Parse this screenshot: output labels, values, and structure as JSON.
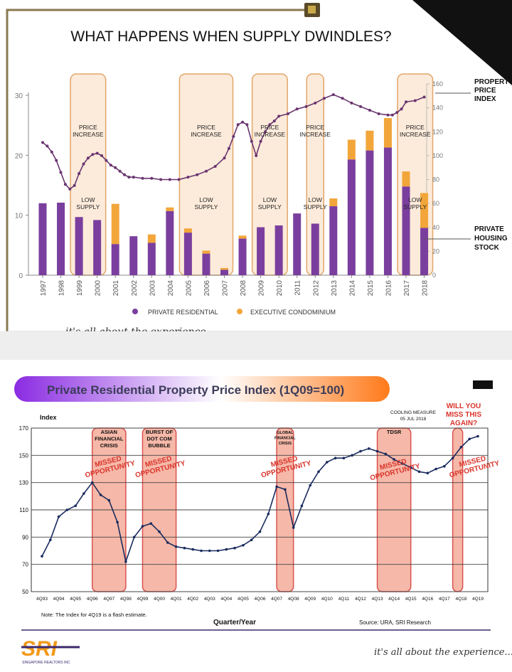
{
  "top": {
    "title": "WHAT HAPPENS WHEN SUPPLY DWINDLES?",
    "footer_tagline": "it's all about the experience...",
    "right_labels": {
      "price_index": [
        "PROPERTY",
        "PRICE",
        "INDEX"
      ],
      "housing_stock": [
        "PRIVATE",
        "HOUSING",
        "STOCK"
      ]
    },
    "colors": {
      "private": "#7a3f9e",
      "ec": "#f2a63a",
      "band_fill": "#fbe8d4",
      "band_stroke": "#e2a66a",
      "line": "#6a3570",
      "frame": "#8a7a52"
    }
  },
  "bottom": {
    "title": "Private Residential Property Price Index (1Q09=100)",
    "note": "Note: The Index for 4Q19 is a flash estimate.",
    "source": "Source: URA, SRI Research",
    "callout": [
      "WILL YOU",
      "MISS THIS",
      "AGAIN?"
    ],
    "cooling_measure": [
      "COOLING MEASURE",
      "05 JUL 2018"
    ],
    "missed_label": [
      "MISSED",
      "OPPORTUNITY"
    ],
    "logo_text": "SRI",
    "logo_subtext": "SINGAPORE REALTORS INC",
    "footer_tagline": "it's all about the experience...",
    "colors": {
      "band_fill": "#f6b8a8",
      "band_stroke": "#d9534f",
      "line": "#1a2b5e",
      "title_grad_start": "#8a2be2",
      "title_grad_end": "#ff7a1a",
      "missed": "#d9342b"
    }
  },
  "chart_data": [
    {
      "type": "bar",
      "title": "WHAT HAPPENS WHEN SUPPLY DWINDLES?",
      "categories": [
        "1997",
        "1998",
        "1999",
        "2000",
        "2001",
        "2002",
        "2003",
        "2004",
        "2005",
        "2006",
        "2007",
        "2008",
        "2009",
        "2010",
        "2011",
        "2012",
        "2013",
        "2014",
        "2015",
        "2016",
        "2017",
        "2018"
      ],
      "series": [
        {
          "name": "PRIVATE RESIDENTIAL",
          "axis": "left",
          "stacked": true,
          "values": [
            12.0,
            12.1,
            9.7,
            9.2,
            5.2,
            6.5,
            5.4,
            10.7,
            7.1,
            3.6,
            0.9,
            6.1,
            8.0,
            8.3,
            10.3,
            8.6,
            11.5,
            19.3,
            20.8,
            21.3,
            14.8,
            7.9
          ]
        },
        {
          "name": "EXECUTIVE CONDOMINIUM",
          "axis": "left",
          "stacked": true,
          "values": [
            0,
            0,
            0,
            0,
            6.7,
            0,
            1.4,
            0.6,
            0.7,
            0.5,
            0.3,
            0.5,
            0,
            0,
            0,
            0,
            1.3,
            3.3,
            3.3,
            4.9,
            2.5,
            5.8
          ]
        },
        {
          "name": "",
          "type": "line",
          "axis": "right",
          "x": [
            1997.0,
            1997.25,
            1997.5,
            1997.75,
            1998.0,
            1998.25,
            1998.5,
            1998.75,
            1999.0,
            1999.25,
            1999.5,
            1999.75,
            2000.0,
            2000.25,
            2000.5,
            2000.75,
            2001.0,
            2001.25,
            2001.5,
            2001.75,
            2002.0,
            2002.5,
            2003.0,
            2003.5,
            2004.0,
            2004.5,
            2005.0,
            2005.5,
            2006.0,
            2006.5,
            2007.0,
            2007.25,
            2007.5,
            2007.75,
            2008.0,
            2008.25,
            2008.5,
            2008.75,
            2009.0,
            2009.25,
            2009.5,
            2009.75,
            2010.0,
            2010.5,
            2011.0,
            2011.5,
            2012.0,
            2012.5,
            2013.0,
            2013.5,
            2014.0,
            2014.5,
            2015.0,
            2015.5,
            2016.0,
            2016.25,
            2016.5,
            2016.75,
            2017.0,
            2017.5,
            2018.0
          ],
          "values": [
            111,
            108,
            103,
            96,
            86,
            76,
            72,
            75,
            85,
            93,
            98,
            101,
            102,
            100,
            96,
            92,
            90,
            87,
            84,
            82,
            82,
            81,
            81,
            80,
            80,
            80,
            82,
            84,
            87,
            91,
            98,
            106,
            116,
            126,
            128,
            126,
            112,
            100,
            112,
            120,
            126,
            129,
            133,
            135,
            139,
            141,
            144,
            148,
            151,
            148,
            144,
            141,
            138,
            135,
            134,
            134,
            136,
            139,
            145,
            146,
            149
          ]
        }
      ],
      "ylim_left": [
        0,
        30
      ],
      "yticks_left": [
        0,
        10,
        20,
        30
      ],
      "ylim_right": [
        0,
        160
      ],
      "yticks_right": [
        0,
        20,
        40,
        60,
        80,
        100,
        120,
        140,
        160
      ],
      "bands": [
        {
          "from": "1999",
          "to": "2000",
          "labels": [
            "PRICE INCREASE",
            "LOW SUPPLY"
          ]
        },
        {
          "from": "2005",
          "to": "2007",
          "labels": [
            "PRICE INCREASE",
            "LOW SUPPLY"
          ]
        },
        {
          "from": "2009",
          "to": "2010",
          "labels": [
            "PRICE INCREASE",
            "LOW SUPPLY"
          ]
        },
        {
          "from": "2012",
          "to": "2012",
          "labels": [
            "PRICE INCREASE",
            "LOW SUPPLY"
          ]
        },
        {
          "from": "2017",
          "to": "2018",
          "labels": [
            "PRICE INCREASE",
            "LOW SUPPLY"
          ]
        }
      ],
      "legend": "bottom"
    },
    {
      "type": "line",
      "title": "Private Residential Property Price Index (1Q09=100)",
      "ylabel": "Index",
      "xlabel": "Quarter/Year",
      "x": [
        "4Q93",
        "2Q94",
        "4Q94",
        "2Q95",
        "4Q95",
        "2Q96",
        "4Q96",
        "2Q97",
        "4Q97",
        "2Q98",
        "4Q98",
        "2Q99",
        "4Q99",
        "2Q00",
        "4Q00",
        "2Q01",
        "4Q01",
        "2Q02",
        "4Q02",
        "2Q03",
        "4Q03",
        "2Q04",
        "4Q04",
        "2Q05",
        "4Q05",
        "2Q06",
        "4Q06",
        "2Q07",
        "4Q07",
        "2Q08",
        "4Q08",
        "2Q09",
        "4Q09",
        "2Q10",
        "4Q10",
        "2Q11",
        "4Q11",
        "2Q12",
        "4Q12",
        "2Q13",
        "4Q13",
        "2Q14",
        "4Q14",
        "2Q15",
        "4Q15",
        "2Q16",
        "4Q16",
        "2Q17",
        "4Q17",
        "2Q18",
        "4Q18",
        "2Q19",
        "4Q19"
      ],
      "values": [
        76,
        88,
        105,
        110,
        113,
        122,
        130,
        121,
        117,
        101,
        72,
        90,
        98,
        100,
        94,
        86,
        83,
        82,
        81,
        80,
        80,
        80,
        81,
        82,
        84,
        88,
        94,
        107,
        127,
        125,
        97,
        113,
        128,
        138,
        145,
        148,
        148,
        150,
        153,
        155,
        153,
        151,
        147,
        144,
        141,
        138,
        137,
        140,
        142,
        148,
        156,
        162,
        164
      ],
      "ylim": [
        50,
        170
      ],
      "yticks": [
        50,
        70,
        90,
        110,
        130,
        150,
        170
      ],
      "xticks": [
        "4Q93",
        "4Q94",
        "4Q95",
        "4Q96",
        "4Q97",
        "4Q98",
        "4Q99",
        "4Q00",
        "4Q01",
        "4Q02",
        "4Q03",
        "4Q04",
        "4Q05",
        "4Q06",
        "4Q07",
        "4Q08",
        "4Q09",
        "4Q10",
        "4Q11",
        "4Q12",
        "4Q13",
        "4Q14",
        "4Q15",
        "4Q16",
        "4Q17",
        "4Q18",
        "4Q19"
      ],
      "bands": [
        {
          "from": "4Q96",
          "to": "4Q98",
          "labels": [
            "ASIAN",
            "FINANCIAL",
            "CRISIS"
          ]
        },
        {
          "from": "4Q99",
          "to": "4Q01",
          "labels": [
            "BURST OF",
            "DOT COM",
            "BUBBLE"
          ]
        },
        {
          "from": "4Q07",
          "to": "4Q08",
          "labels": [
            "GLOBAL",
            "FINANCIAL",
            "CRISIS"
          ]
        },
        {
          "from": "4Q13",
          "to": "4Q15",
          "labels": [
            "TDSR"
          ]
        },
        {
          "from": "2Q18",
          "to": "4Q18",
          "labels": []
        }
      ]
    }
  ]
}
